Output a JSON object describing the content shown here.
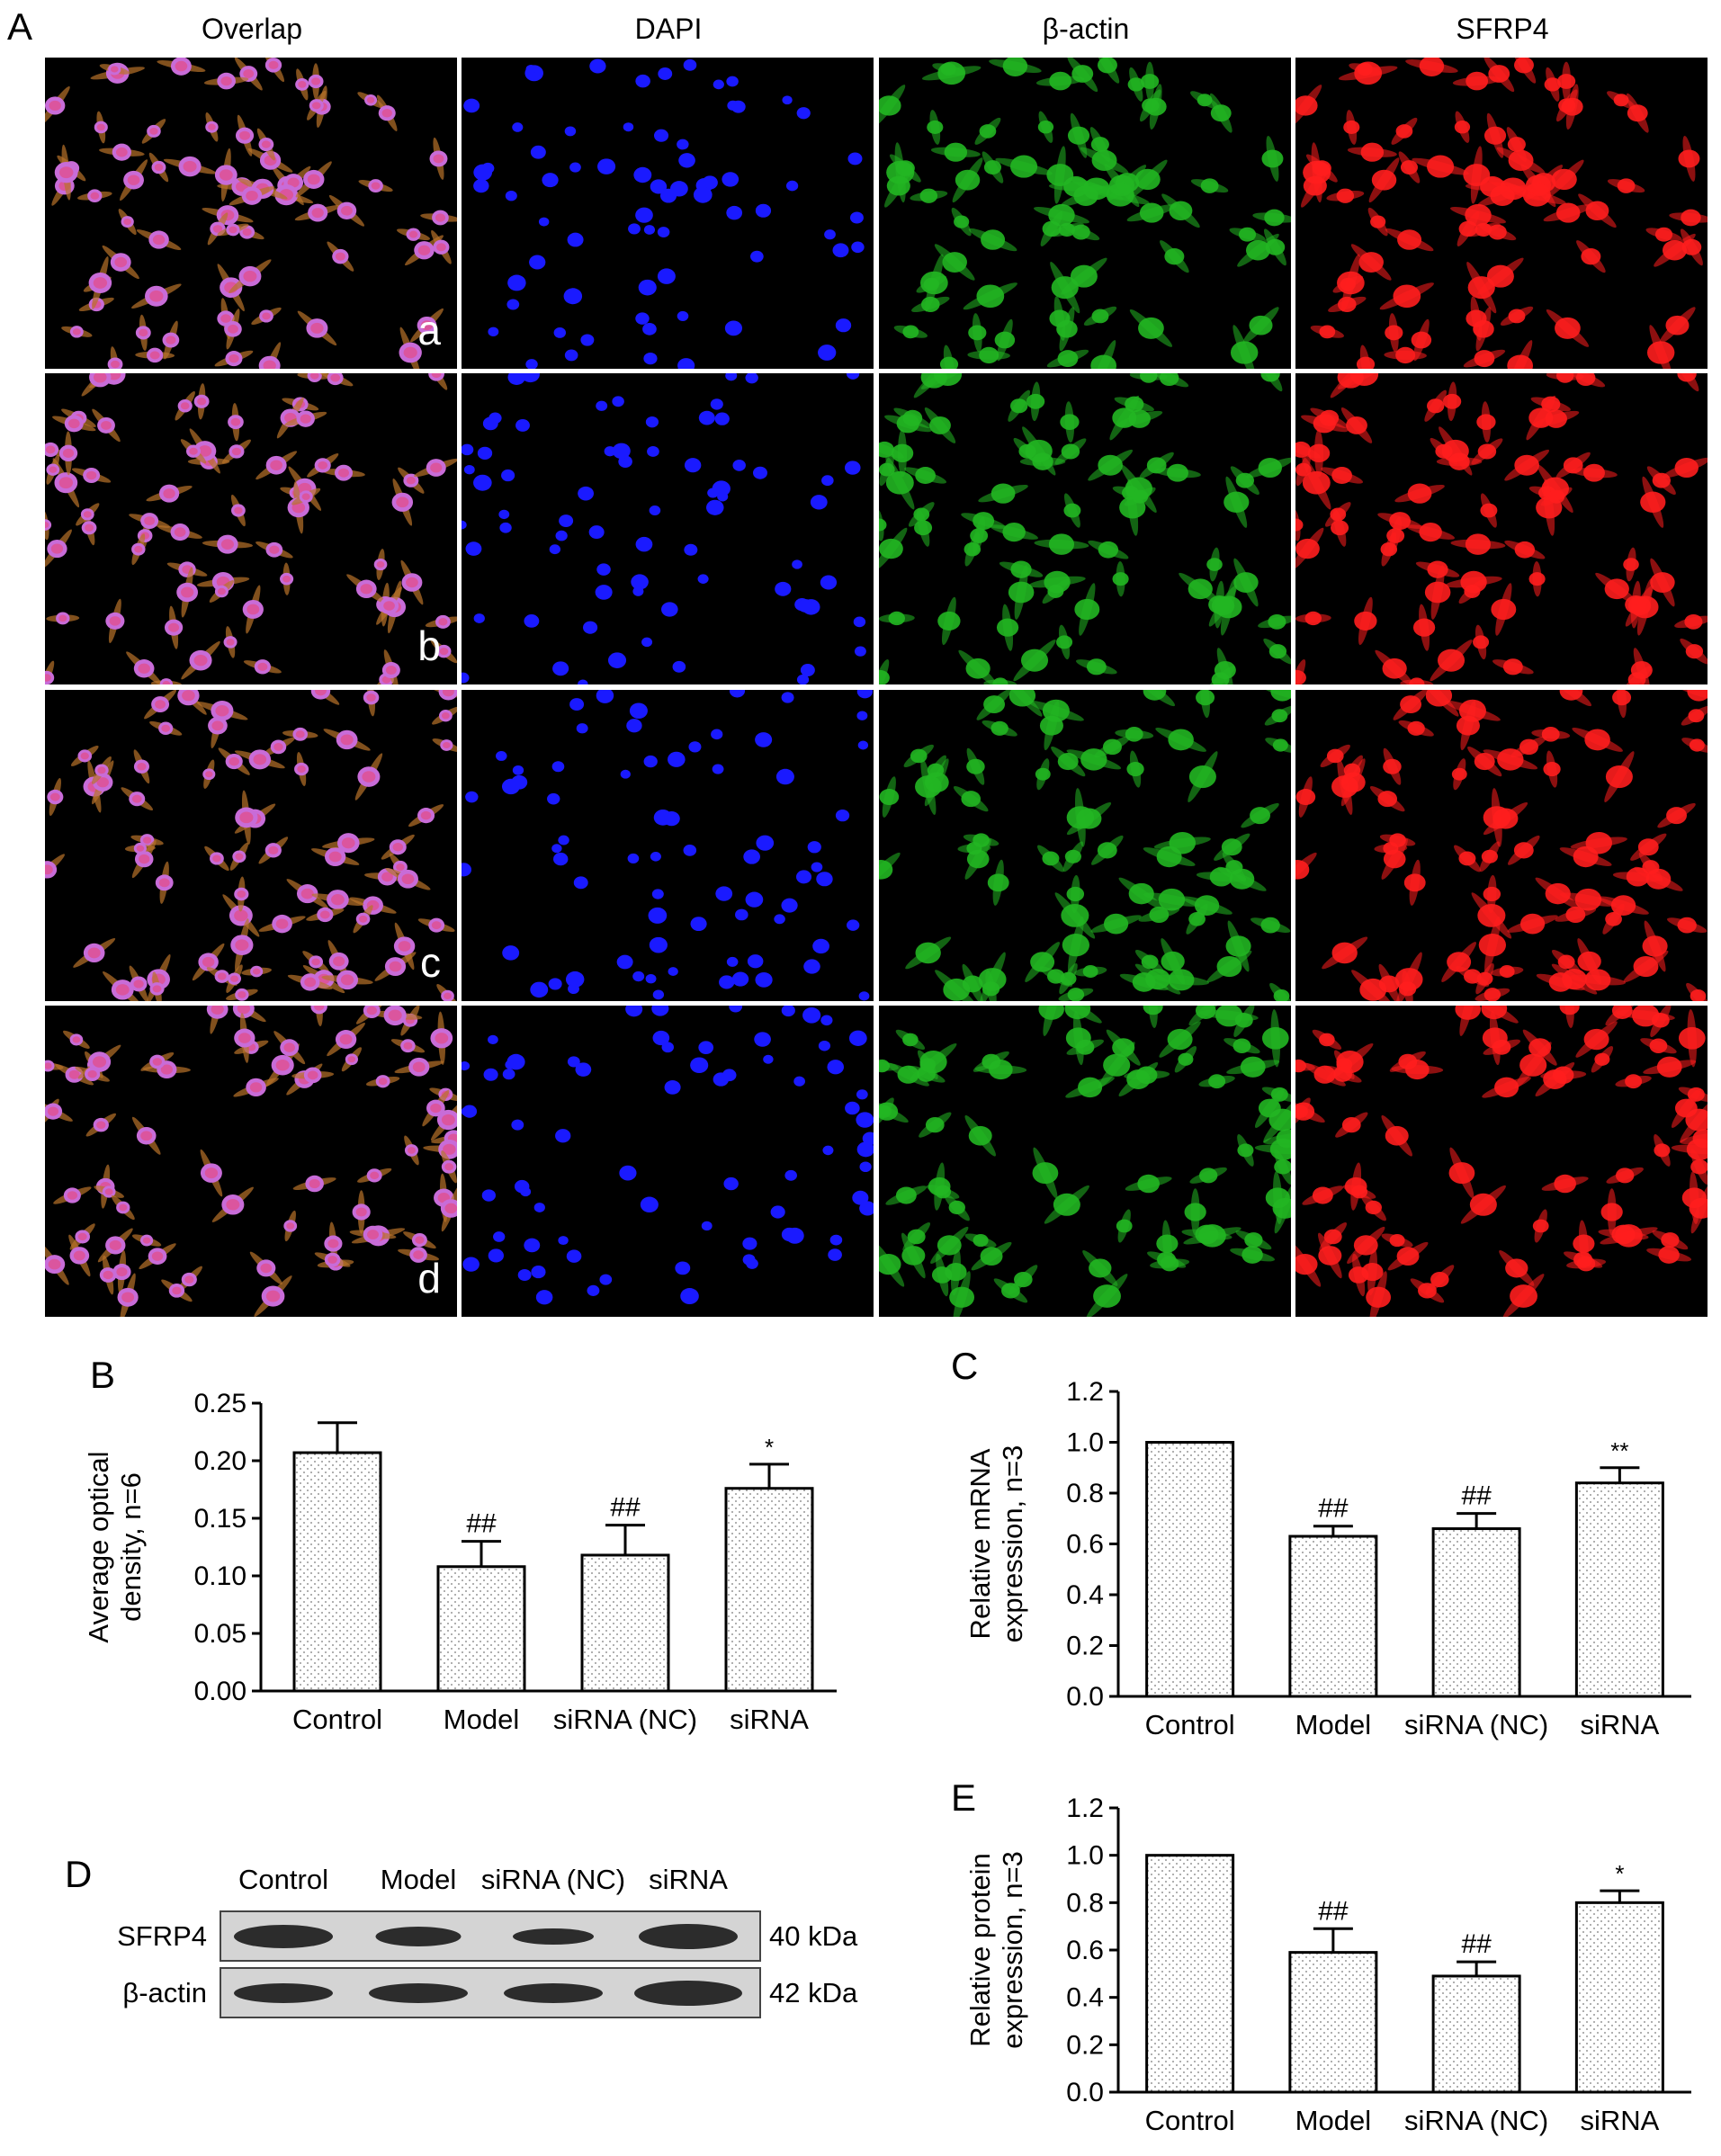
{
  "panels": {
    "A": "A",
    "B": "B",
    "C": "C",
    "D": "D",
    "E": "E"
  },
  "microscopy": {
    "columns": [
      "Overlap",
      "DAPI",
      "β-actin",
      "SFRP4"
    ],
    "rows": [
      "a",
      "b",
      "c",
      "d"
    ],
    "channel_colors": {
      "overlap": "#c04080",
      "dapi": "#1a1aff",
      "actin": "#22b622",
      "sfrp4": "#ff1e1e"
    }
  },
  "chart_data": [
    {
      "panel": "B",
      "type": "bar",
      "categories": [
        "Control",
        "Model",
        "siRNA (NC)",
        "siRNA"
      ],
      "values": [
        0.207,
        0.108,
        0.118,
        0.176
      ],
      "errors": [
        0.026,
        0.022,
        0.026,
        0.021
      ],
      "annotations": [
        "",
        "##",
        "##",
        "*"
      ],
      "ylabel": "Average optical density, n=6",
      "ylim": [
        0,
        0.25
      ],
      "yticks": [
        "0.00",
        "0.05",
        "0.10",
        "0.15",
        "0.20",
        "0.25"
      ]
    },
    {
      "panel": "C",
      "type": "bar",
      "categories": [
        "Control",
        "Model",
        "siRNA (NC)",
        "siRNA"
      ],
      "values": [
        1.0,
        0.63,
        0.66,
        0.84
      ],
      "errors": [
        0.0,
        0.04,
        0.06,
        0.06
      ],
      "annotations": [
        "",
        "##",
        "##",
        "**"
      ],
      "ylabel": "Relative mRNA expression, n=3",
      "ylim": [
        0,
        1.2
      ],
      "yticks": [
        "0.0",
        "0.2",
        "0.4",
        "0.6",
        "0.8",
        "1.0",
        "1.2"
      ]
    },
    {
      "panel": "E",
      "type": "bar",
      "categories": [
        "Control",
        "Model",
        "siRNA (NC)",
        "siRNA"
      ],
      "values": [
        1.0,
        0.59,
        0.49,
        0.8
      ],
      "errors": [
        0.0,
        0.1,
        0.06,
        0.05
      ],
      "annotations": [
        "",
        "##",
        "##",
        "*"
      ],
      "ylabel": "Relative protein expression, n=3",
      "ylim": [
        0,
        1.2
      ],
      "yticks": [
        "0.0",
        "0.2",
        "0.4",
        "0.6",
        "0.8",
        "1.0",
        "1.2"
      ]
    }
  ],
  "western_blot": {
    "lanes": [
      "Control",
      "Model",
      "siRNA (NC)",
      "siRNA"
    ],
    "bands": [
      {
        "name": "SFRP4",
        "size": "40 kDa"
      },
      {
        "name": "β-actin",
        "size": "42 kDa"
      }
    ]
  }
}
